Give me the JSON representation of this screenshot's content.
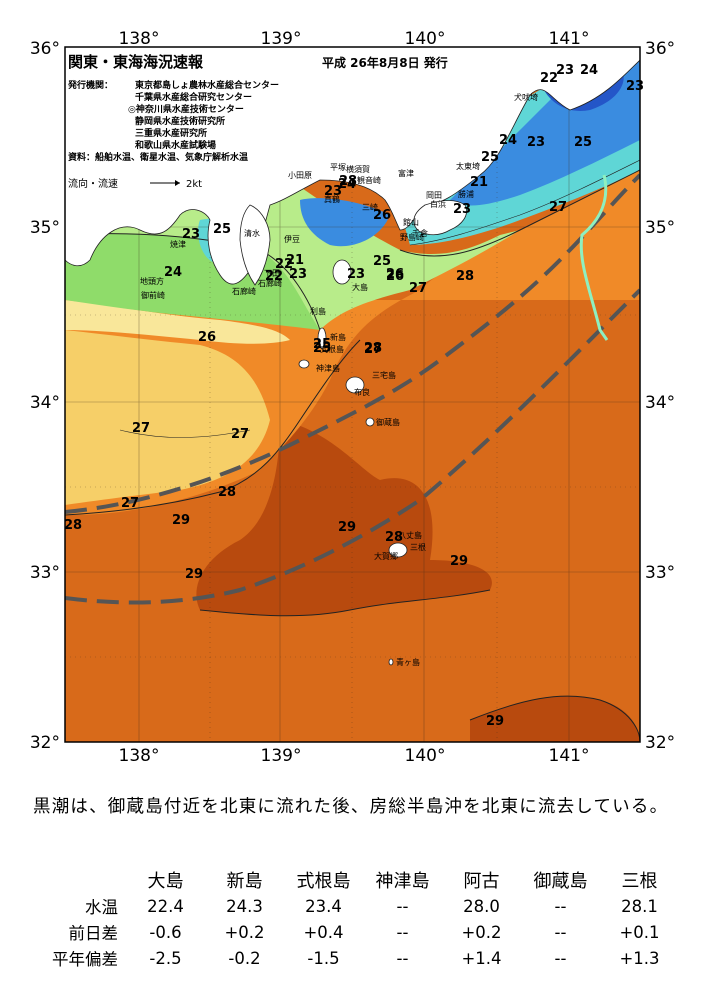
{
  "map": {
    "title": "関東・東海海況速報",
    "issue_date": "平成 26年8月8日 発行",
    "issuers_label": "発行機関：",
    "issuers": [
      "東京都島しょ農林水産総合センター",
      "千葉県水産総合研究センター",
      "◎神奈川県水産技術センター",
      "静岡県水産技術研究所",
      "三重県水産研究所",
      "和歌山県水産試験場"
    ],
    "sources": "資料：船舶水温、衛星水温、気象庁解析水温",
    "current_legend": "流向・流速",
    "current_scale": "2kt",
    "lon_labels": [
      "138°",
      "139°",
      "140°",
      "141°"
    ],
    "lat_labels": [
      "36°",
      "35°",
      "34°",
      "33°",
      "32°"
    ],
    "colors": {
      "warm": "#d86a1a",
      "hot": "#b84a0e",
      "deep": "#a8420c",
      "orange": "#f08a28",
      "yellow": "#f6cf68",
      "lightyellow": "#f9e79a",
      "green": "#8fdc6a",
      "lightgreen": "#b8ec8a",
      "cyan": "#5fd6d6",
      "blue": "#3a8ce0",
      "navy": "#2456c8",
      "land": "#ffffff",
      "kuroshio": "#555555"
    },
    "isotherm_labels": [
      "22",
      "23",
      "24",
      "23",
      "25",
      "24",
      "23",
      "25",
      "27",
      "23",
      "24",
      "26",
      "25",
      "23",
      "25",
      "26",
      "27",
      "28",
      "21",
      "23",
      "25",
      "26",
      "27",
      "28",
      "24",
      "23",
      "22",
      "23",
      "21",
      "22",
      "25",
      "26",
      "28",
      "27",
      "27",
      "27",
      "28",
      "29",
      "28",
      "29",
      "29",
      "28",
      "29",
      "29"
    ],
    "place_names": [
      "犬吠埼",
      "太東埼",
      "勝浦",
      "白浜",
      "布良",
      "野島崎",
      "館山",
      "千倉",
      "富津",
      "横須賀",
      "観音崎",
      "平塚",
      "小田原",
      "真鶴",
      "三崎",
      "伊豆",
      "下田",
      "石廊崎",
      "石廊崎",
      "焼津",
      "御前崎",
      "地頭方",
      "清水",
      "大島",
      "新島",
      "式根島",
      "神津島",
      "三宅島",
      "御蔵島",
      "三根",
      "八丈島",
      "大賀郷",
      "青ヶ島",
      "利島",
      "岡田"
    ]
  },
  "summary": "黒潮は、御蔵島付近を北東に流れた後、房総半島沖を北東に流去している。",
  "table": {
    "stations": [
      "大島",
      "新島",
      "式根島",
      "神津島",
      "阿古",
      "御蔵島",
      "三根"
    ],
    "rows": [
      {
        "label": "水温",
        "values": [
          "22.4",
          "24.3",
          "23.4",
          "--",
          "28.0",
          "--",
          "28.1"
        ]
      },
      {
        "label": "前日差",
        "values": [
          "-0.6",
          "+0.2",
          "+0.4",
          "--",
          "+0.2",
          "--",
          "+0.1"
        ]
      },
      {
        "label": "平年偏差",
        "values": [
          "-2.5",
          "-0.2",
          "-1.5",
          "--",
          "+1.4",
          "--",
          "+1.3"
        ]
      }
    ]
  }
}
